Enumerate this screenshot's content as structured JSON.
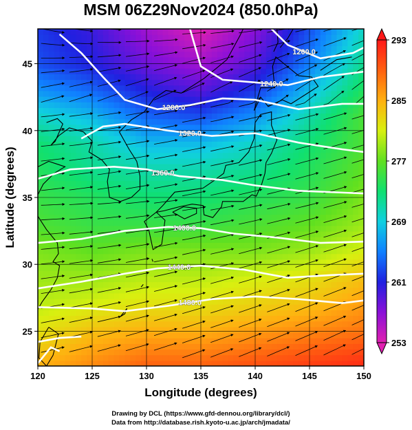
{
  "title": "MSM 06Z29Nov2024 (850.0hPa)",
  "credits": [
    "Drawing by DCL (https://www.gfd-dennou.org/library/dcl/)",
    "Data from http://database.rish.kyoto-u.ac.jp/arch/jmadata/"
  ],
  "chart_data": {
    "type": "heatmap",
    "title": "MSM 06Z29Nov2024 (850.0hPa)",
    "xlabel": "Longitude (degrees)",
    "ylabel": "Latitude  (degrees)",
    "xlim": [
      120,
      150
    ],
    "ylim": [
      22.4,
      47.6
    ],
    "xticks": [
      120,
      125,
      130,
      135,
      140,
      145,
      150
    ],
    "yticks": [
      25,
      30,
      35,
      40,
      45
    ],
    "colorbar": {
      "ticks": [
        253,
        261,
        269,
        277,
        285,
        293
      ],
      "range": [
        253,
        293
      ],
      "colors": [
        "#e020b0",
        "#8a10d8",
        "#2020e0",
        "#1080ff",
        "#10d0e0",
        "#10e070",
        "#60e020",
        "#d8f010",
        "#ffb010",
        "#ff6010",
        "#ff1818"
      ]
    },
    "temperature_field": {
      "lat_nodes": [
        22.4,
        25,
        27,
        29,
        31,
        33,
        35,
        37,
        39,
        41,
        43,
        45,
        47.6
      ],
      "lon_nodes": [
        120,
        125,
        130,
        135,
        140,
        145,
        150
      ],
      "values_K": [
        [
          285,
          287,
          289,
          289,
          290,
          291,
          292
        ],
        [
          282,
          284,
          285,
          285,
          286,
          287,
          288
        ],
        [
          280,
          281,
          282,
          282,
          283,
          284,
          286
        ],
        [
          279,
          279,
          280,
          280,
          281,
          282,
          284
        ],
        [
          278,
          277,
          278,
          278,
          278,
          279,
          281
        ],
        [
          276,
          275,
          275,
          275,
          276,
          277,
          279
        ],
        [
          275,
          274,
          273,
          273,
          274,
          275,
          278
        ],
        [
          274,
          272,
          271,
          271,
          272,
          274,
          277
        ],
        [
          273,
          271,
          268,
          268,
          270,
          273,
          276
        ],
        [
          270,
          268,
          264,
          263,
          266,
          271,
          276
        ],
        [
          266,
          264,
          261,
          259,
          262,
          268,
          274
        ],
        [
          263,
          261,
          258,
          256,
          259,
          265,
          272
        ],
        [
          262,
          260,
          256,
          253,
          257,
          263,
          270
        ]
      ]
    },
    "height_contours": [
      {
        "label": "1200.0",
        "points": [
          [
            141.5,
            47.6
          ],
          [
            143,
            46.4
          ],
          [
            146,
            45.4
          ],
          [
            149,
            45.8
          ],
          [
            150,
            46.2
          ]
        ]
      },
      {
        "label": "1240.0",
        "points": [
          [
            134,
            47.6
          ],
          [
            135,
            44.8
          ],
          [
            137,
            43.8
          ],
          [
            140,
            43.6
          ],
          [
            143,
            43.4
          ],
          [
            146,
            44.0
          ],
          [
            149,
            44.3
          ],
          [
            150,
            44.4
          ]
        ]
      },
      {
        "label": "1280.0",
        "points": [
          [
            122,
            47.2
          ],
          [
            124,
            45.8
          ],
          [
            126,
            44.0
          ],
          [
            128,
            42.3
          ],
          [
            131,
            41.6
          ],
          [
            134,
            41.9
          ],
          [
            137,
            42.4
          ],
          [
            140,
            42.3
          ],
          [
            144,
            41.6
          ],
          [
            148,
            42.0
          ],
          [
            150,
            42.0
          ]
        ]
      },
      {
        "label": "1320.0",
        "points": [
          [
            124,
            39.4
          ],
          [
            126,
            40.3
          ],
          [
            128,
            40.5
          ],
          [
            132,
            40.0
          ],
          [
            136,
            39.6
          ],
          [
            140,
            39.8
          ],
          [
            144,
            39.1
          ],
          [
            148,
            38.6
          ],
          [
            150,
            38.4
          ]
        ]
      },
      {
        "label": "1360.0",
        "points": [
          [
            120,
            36.4
          ],
          [
            123,
            37.1
          ],
          [
            127,
            37.3
          ],
          [
            130,
            37.1
          ],
          [
            133,
            36.6
          ],
          [
            137,
            36.3
          ],
          [
            140,
            35.9
          ],
          [
            144,
            35.5
          ],
          [
            150,
            35.3
          ]
        ]
      },
      {
        "label": "1400.0",
        "points": [
          [
            120,
            31.6
          ],
          [
            124,
            31.9
          ],
          [
            128,
            32.5
          ],
          [
            132,
            32.8
          ],
          [
            135,
            32.7
          ],
          [
            138,
            32.3
          ],
          [
            142,
            32.0
          ],
          [
            146,
            31.6
          ],
          [
            150,
            31.7
          ]
        ]
      },
      {
        "label": "1440.0",
        "points": [
          [
            120,
            28.2
          ],
          [
            124,
            28.7
          ],
          [
            128,
            29.3
          ],
          [
            131,
            29.7
          ],
          [
            135,
            29.9
          ],
          [
            139,
            29.6
          ],
          [
            143,
            29.0
          ],
          [
            147,
            29.2
          ],
          [
            150,
            29.3
          ]
        ]
      },
      {
        "label": "1480.0",
        "points": [
          [
            120,
            26.8
          ],
          [
            125,
            26.7
          ],
          [
            128,
            26.5
          ],
          [
            132,
            26.9
          ],
          [
            136,
            27.4
          ],
          [
            140,
            27.6
          ],
          [
            144,
            27.4
          ],
          [
            148,
            27.1
          ],
          [
            150,
            27.3
          ]
        ]
      },
      {
        "label": "",
        "points": [
          [
            120,
            24.2
          ],
          [
            122,
            24.5
          ],
          [
            124,
            24.6
          ]
        ]
      },
      {
        "label": "",
        "points": [
          [
            120,
            22.6
          ],
          [
            121.2,
            23.8
          ],
          [
            122,
            23.5
          ]
        ]
      }
    ],
    "wind": {
      "direction": "westerly",
      "description": "streamlines flowing generally west to east, southwesterly over the southern half"
    }
  }
}
